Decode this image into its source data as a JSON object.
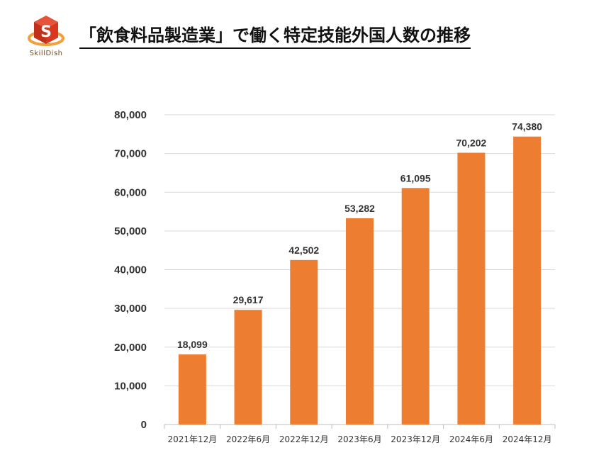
{
  "header": {
    "title": "「飲食料品製造業」で働く特定技能外国人数の推移",
    "logo_text": "SkillDish"
  },
  "colors": {
    "bar": "#ED7D31",
    "logo_red": "#D9381E",
    "logo_orange": "#F2A13A",
    "grid": "#D9D9D9"
  },
  "chart_data": {
    "type": "bar",
    "title": "「飲食料品製造業」で働く特定技能外国人数の推移",
    "xlabel": "",
    "ylabel": "",
    "categories": [
      "2021年12月",
      "2022年6月",
      "2022年12月",
      "2023年6月",
      "2023年12月",
      "2024年6月",
      "2024年12月"
    ],
    "values": [
      18099,
      29617,
      42502,
      53282,
      61095,
      70202,
      74380
    ],
    "value_labels": [
      "18,099",
      "29,617",
      "42,502",
      "53,282",
      "61,095",
      "70,202",
      "74,380"
    ],
    "ylim": [
      0,
      80000
    ],
    "yticks": [
      0,
      10000,
      20000,
      30000,
      40000,
      50000,
      60000,
      70000,
      80000
    ],
    "ytick_labels": [
      "0",
      "10,000",
      "20,000",
      "30,000",
      "40,000",
      "50,000",
      "60,000",
      "70,000",
      "80,000"
    ],
    "grid": true,
    "legend": "none"
  }
}
